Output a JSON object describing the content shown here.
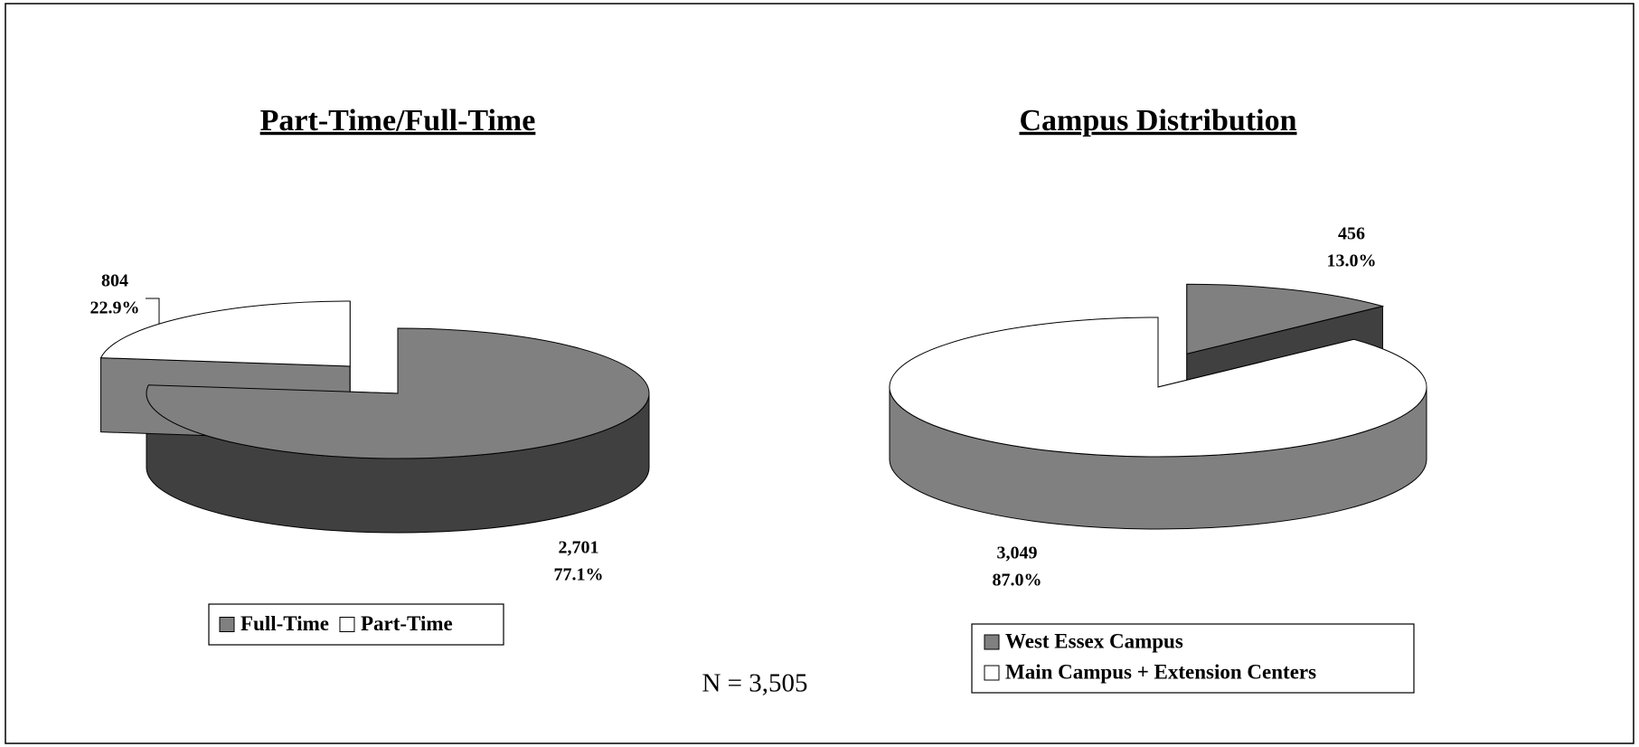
{
  "chart_data": [
    {
      "type": "pie",
      "title": "Part-Time/Full-Time",
      "categories": [
        "Full-Time",
        "Part-Time"
      ],
      "values": [
        2701,
        804
      ],
      "value_labels": [
        "2,701",
        "804"
      ],
      "percentages": [
        77.1,
        22.9
      ],
      "percentage_labels": [
        "77.1%",
        "22.9%"
      ],
      "colors": [
        "#808080",
        "#ffffff"
      ]
    },
    {
      "type": "pie",
      "title": "Campus Distribution",
      "categories": [
        "West Essex Campus",
        "Main Campus + Extension Centers"
      ],
      "values": [
        456,
        3049
      ],
      "value_labels": [
        "456",
        "3,049"
      ],
      "percentages": [
        13.0,
        87.0
      ],
      "percentage_labels": [
        "13.0%",
        "87.0%"
      ],
      "colors": [
        "#808080",
        "#ffffff"
      ]
    }
  ],
  "annotation": "N = 3,505"
}
